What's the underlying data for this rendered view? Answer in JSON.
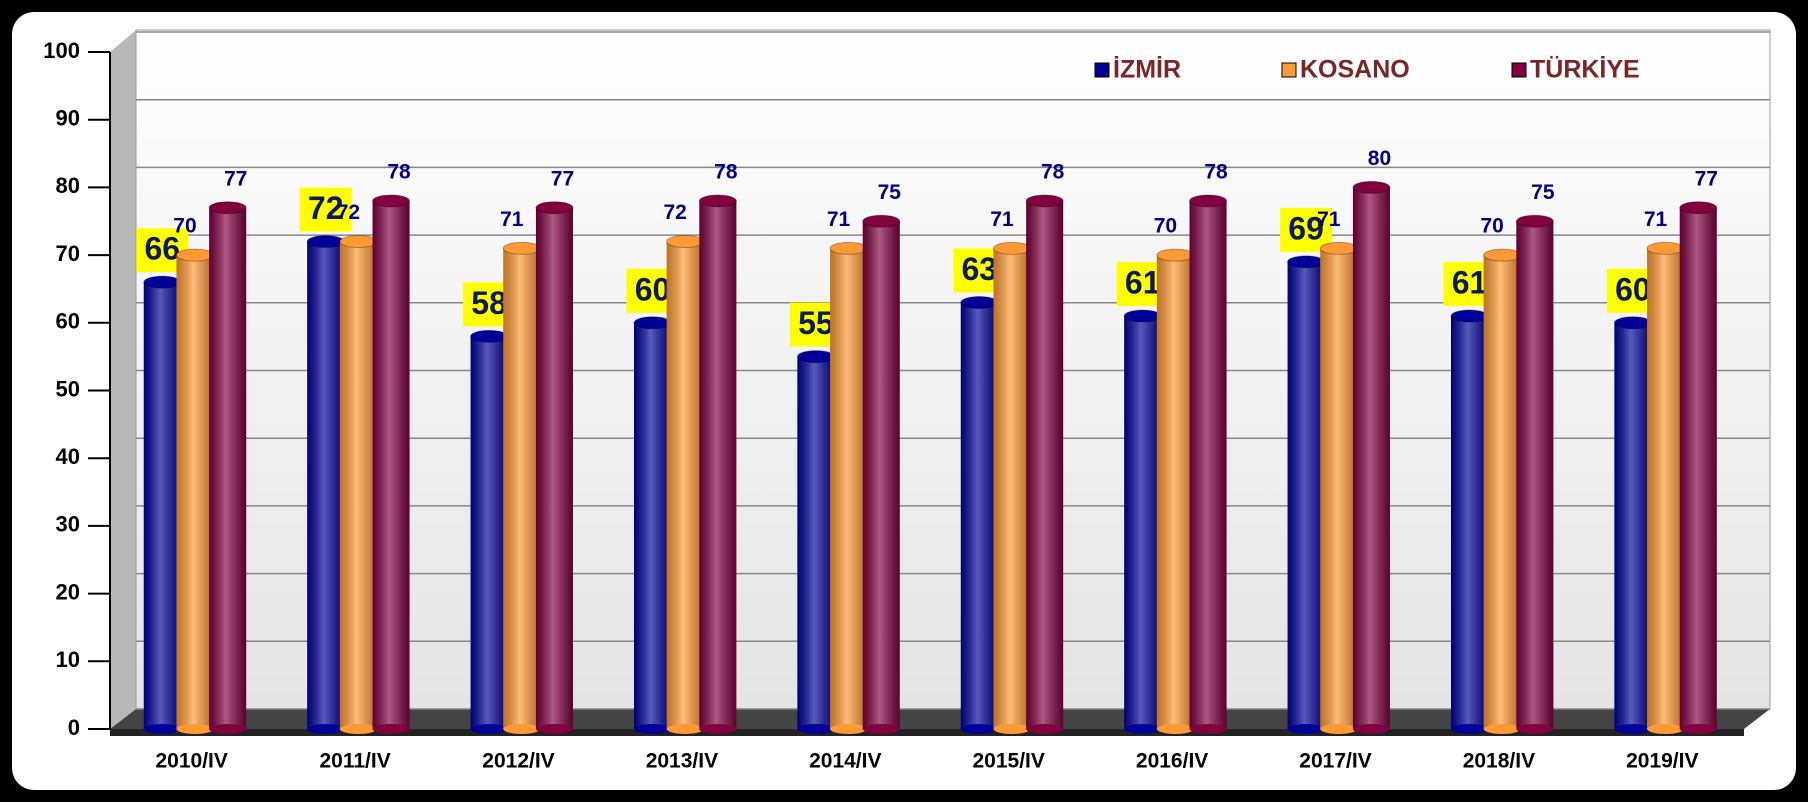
{
  "chart_data": {
    "type": "bar",
    "categories": [
      "2010/IV",
      "2011/IV",
      "2012/IV",
      "2013/IV",
      "2014/IV",
      "2015/IV",
      "2016/IV",
      "2017/IV",
      "2018/IV",
      "2019/IV"
    ],
    "series": [
      {
        "name": "İZMİR",
        "color": "#000099",
        "values": [
          66,
          72,
          58,
          60,
          55,
          63,
          61,
          69,
          61,
          60
        ]
      },
      {
        "name": "KOSANO",
        "color": "#FF9933",
        "values": [
          70,
          72,
          71,
          72,
          71,
          71,
          70,
          71,
          70,
          71
        ]
      },
      {
        "name": "TÜRKİYE",
        "color": "#800040",
        "values": [
          77,
          78,
          77,
          78,
          75,
          78,
          78,
          80,
          75,
          77
        ]
      }
    ],
    "ylim": [
      0,
      100
    ],
    "yticks": [
      0,
      10,
      20,
      30,
      40,
      50,
      60,
      70,
      80,
      90,
      100
    ],
    "grid": true,
    "legend": "top-right"
  }
}
